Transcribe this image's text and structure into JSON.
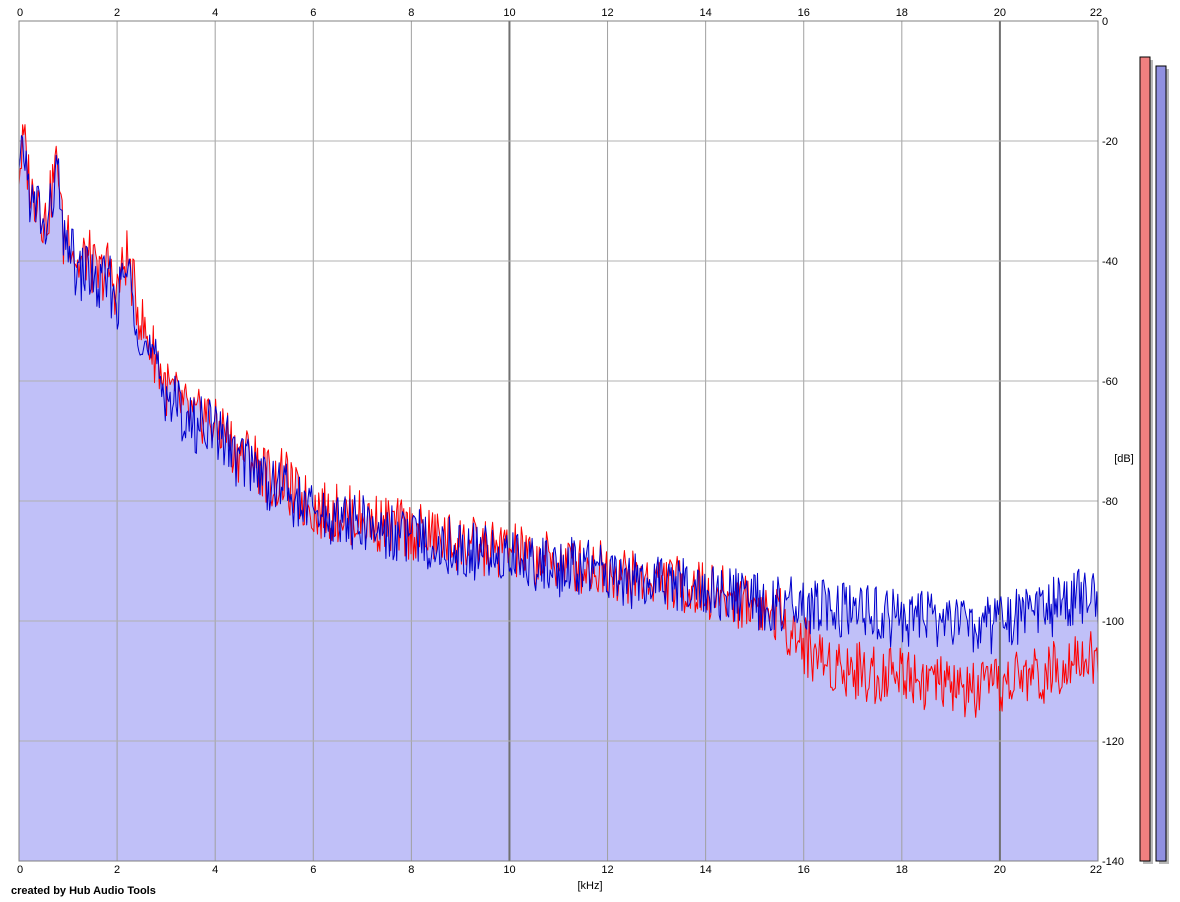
{
  "chart_data": {
    "type": "area",
    "title": "",
    "xlabel": "[kHz]",
    "ylabel": "[dB]",
    "xlim": [
      0,
      22
    ],
    "ylim": [
      -140,
      0
    ],
    "x_ticks": [
      0,
      2,
      4,
      6,
      8,
      10,
      12,
      14,
      16,
      18,
      20,
      22
    ],
    "y_ticks": [
      0,
      -20,
      -40,
      -60,
      -80,
      -100,
      -120,
      -140
    ],
    "x_tick_labels": [
      "0",
      "2",
      "4",
      "6",
      "8",
      "10",
      "12",
      "14",
      "16",
      "18",
      "20",
      "22"
    ],
    "y_tick_labels": [
      "0",
      "-20",
      "-40",
      "-60",
      "-80",
      "-100",
      "-120",
      "-140"
    ],
    "grid": true,
    "fill_color": "#c0c0f8",
    "x": [
      0.0,
      0.1,
      0.2,
      0.3,
      0.4,
      0.5,
      0.6,
      0.7,
      0.8,
      0.9,
      1.0,
      1.2,
      1.4,
      1.6,
      1.8,
      2.0,
      2.2,
      2.4,
      2.6,
      2.8,
      3.0,
      3.2,
      3.4,
      3.6,
      3.8,
      4.0,
      4.2,
      4.4,
      4.6,
      4.8,
      5.0,
      5.2,
      5.4,
      5.6,
      5.8,
      6.0,
      6.3,
      6.6,
      7.0,
      7.5,
      8.0,
      8.5,
      9.0,
      9.5,
      10.0,
      10.5,
      11.0,
      11.5,
      12.0,
      12.5,
      13.0,
      13.5,
      14.0,
      14.5,
      15.0,
      15.5,
      16.0,
      16.5,
      17.0,
      17.5,
      18.0,
      18.5,
      19.0,
      19.5,
      20.0,
      20.5,
      21.0,
      21.5,
      22.0
    ],
    "series": [
      {
        "name": "",
        "color": "#ff0000",
        "values": [
          -24,
          -19,
          -25,
          -29,
          -27,
          -33,
          -31,
          -25,
          -22,
          -36,
          -33,
          -40,
          -38,
          -42,
          -40,
          -44,
          -38,
          -46,
          -52,
          -55,
          -60,
          -62,
          -64,
          -66,
          -64,
          -67,
          -67,
          -71,
          -71,
          -72,
          -74,
          -76,
          -75,
          -78,
          -79,
          -80,
          -81,
          -81,
          -82,
          -83,
          -84,
          -85,
          -86,
          -87,
          -87,
          -89,
          -89,
          -90,
          -90,
          -92,
          -92,
          -93,
          -94,
          -95,
          -96,
          -98,
          -103,
          -106,
          -107,
          -108,
          -107,
          -109,
          -110,
          -111,
          -110,
          -108,
          -108,
          -104,
          -106
        ]
      },
      {
        "name": "",
        "color": "#0000cc",
        "values": [
          -26,
          -20,
          -27,
          -31,
          -29,
          -35,
          -33,
          -27,
          -24,
          -38,
          -35,
          -42,
          -40,
          -44,
          -42,
          -46,
          -40,
          -48,
          -54,
          -57,
          -61,
          -63,
          -65,
          -67,
          -65,
          -68,
          -68,
          -72,
          -72,
          -73,
          -75,
          -77,
          -76,
          -79,
          -80,
          -81,
          -82,
          -82,
          -83,
          -84,
          -85,
          -86,
          -87,
          -88,
          -88,
          -89,
          -90,
          -90,
          -91,
          -92,
          -93,
          -93,
          -94,
          -95,
          -96,
          -96,
          -97,
          -97,
          -98,
          -98,
          -99,
          -99,
          -99,
          -100,
          -100,
          -98,
          -97,
          -95,
          -96
        ]
      }
    ],
    "meters": [
      {
        "color": "#f08080",
        "level_db": -6
      },
      {
        "color": "#9090e0",
        "level_db": -7.5
      }
    ]
  },
  "credit": "created by Hub Audio Tools"
}
